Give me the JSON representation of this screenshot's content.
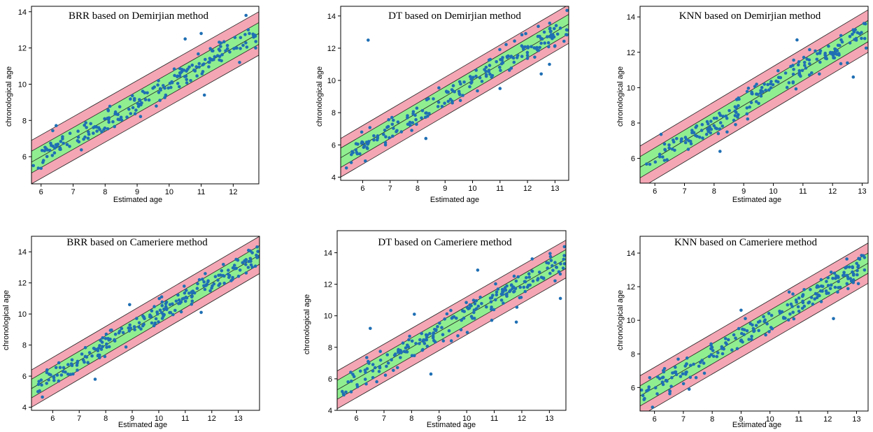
{
  "figure": {
    "band_colors": {
      "inner": "#90ee90",
      "outer": "#f4a6b4",
      "point": "#1f6fb4"
    }
  },
  "chart_data": [
    {
      "type": "scatter",
      "title": "BRR based on Demirjian method",
      "xlabel": "Estimated age",
      "ylabel": "chronological age",
      "xlim": [
        5.7,
        12.8
      ],
      "ylim": [
        4.5,
        14.3
      ],
      "xticks": [
        6,
        7,
        8,
        9,
        10,
        11,
        12
      ],
      "yticks": [
        6,
        8,
        10,
        12,
        14
      ],
      "bands": {
        "inner_offset": 0.6,
        "outer_offset": 1.2,
        "slope": 1
      },
      "seed": 11,
      "n_points": 200,
      "noise_sd": 0.35,
      "outliers": [
        [
          10.5,
          12.5
        ],
        [
          11.0,
          12.8
        ],
        [
          11.1,
          9.4
        ],
        [
          12.4,
          13.8
        ],
        [
          12.2,
          11.2
        ]
      ]
    },
    {
      "type": "scatter",
      "title": "DT based on Demirjian method",
      "xlabel": "Estimated age",
      "ylabel": "chronological age",
      "xlim": [
        5.2,
        13.5
      ],
      "ylim": [
        3.8,
        14.6
      ],
      "xticks": [
        6,
        7,
        8,
        9,
        10,
        11,
        12,
        13
      ],
      "yticks": [
        4,
        6,
        8,
        10,
        12,
        14
      ],
      "bands": {
        "inner_offset": 0.6,
        "outer_offset": 1.2,
        "slope": 1
      },
      "seed": 23,
      "n_points": 200,
      "noise_sd": 0.4,
      "outliers": [
        [
          6.2,
          12.5
        ],
        [
          8.3,
          6.4
        ],
        [
          11.0,
          9.5
        ],
        [
          12.8,
          11.0
        ],
        [
          12.5,
          10.4
        ],
        [
          6.1,
          5.0
        ]
      ]
    },
    {
      "type": "scatter",
      "title": "KNN based on Demirjian method",
      "xlabel": "Estimated age",
      "ylabel": "chronological age",
      "xlim": [
        5.5,
        13.2
      ],
      "ylim": [
        4.6,
        14.6
      ],
      "xticks": [
        6,
        7,
        8,
        9,
        10,
        11,
        12,
        13
      ],
      "yticks": [
        6,
        8,
        10,
        12,
        14
      ],
      "bands": {
        "inner_offset": 0.6,
        "outer_offset": 1.2,
        "slope": 1
      },
      "seed": 37,
      "n_points": 200,
      "noise_sd": 0.38,
      "outliers": [
        [
          10.8,
          12.7
        ],
        [
          12.7,
          10.6
        ],
        [
          8.2,
          6.4
        ],
        [
          12.5,
          11.4
        ]
      ]
    },
    {
      "type": "scatter",
      "title": "BRR based on Cameriere method",
      "xlabel": "Estimated age",
      "ylabel": "chronological age",
      "xlim": [
        5.2,
        13.8
      ],
      "ylim": [
        3.8,
        15.0
      ],
      "xticks": [
        6,
        7,
        8,
        9,
        10,
        11,
        12,
        13
      ],
      "yticks": [
        4,
        6,
        8,
        10,
        12,
        14
      ],
      "bands": {
        "inner_offset": 0.6,
        "outer_offset": 1.2,
        "slope": 1
      },
      "seed": 41,
      "n_points": 220,
      "noise_sd": 0.38,
      "outliers": [
        [
          8.9,
          10.6
        ],
        [
          11.6,
          10.1
        ],
        [
          7.6,
          5.8
        ]
      ]
    },
    {
      "type": "scatter",
      "title": "DT based on Cameriere method",
      "xlabel": "Estimated age",
      "ylabel": "chronological age",
      "xlim": [
        5.3,
        13.6
      ],
      "ylim": [
        4.0,
        15.4
      ],
      "xticks": [
        6,
        7,
        8,
        9,
        10,
        11,
        12,
        13
      ],
      "yticks": [
        4,
        6,
        8,
        10,
        12,
        14
      ],
      "bands": {
        "inner_offset": 0.6,
        "outer_offset": 1.2,
        "slope": 1
      },
      "seed": 53,
      "n_points": 210,
      "noise_sd": 0.45,
      "outliers": [
        [
          6.5,
          9.2
        ],
        [
          8.7,
          6.3
        ],
        [
          11.8,
          9.6
        ],
        [
          13.4,
          11.1
        ],
        [
          10.4,
          12.9
        ],
        [
          8.1,
          10.1
        ]
      ]
    },
    {
      "type": "scatter",
      "title": "KNN based on Cameriere method",
      "xlabel": "Estimated age",
      "ylabel": "chronological age",
      "xlim": [
        5.5,
        13.4
      ],
      "ylim": [
        4.6,
        15.0
      ],
      "xticks": [
        6,
        7,
        8,
        9,
        10,
        11,
        12,
        13
      ],
      "yticks": [
        6,
        8,
        10,
        12,
        14
      ],
      "bands": {
        "inner_offset": 0.6,
        "outer_offset": 1.2,
        "slope": 1
      },
      "seed": 67,
      "n_points": 210,
      "noise_sd": 0.38,
      "outliers": [
        [
          12.2,
          10.1
        ],
        [
          7.2,
          5.9
        ],
        [
          9.0,
          10.6
        ]
      ]
    }
  ]
}
